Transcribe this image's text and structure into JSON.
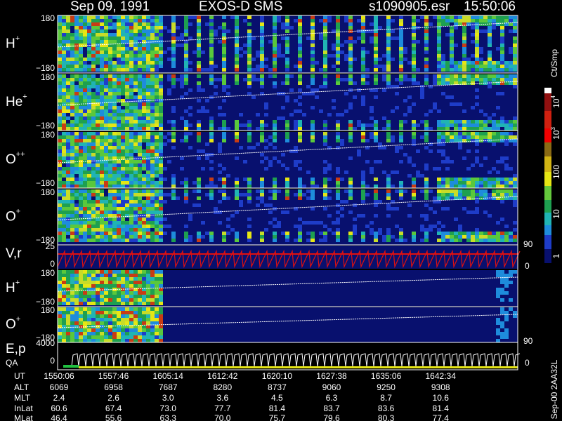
{
  "header": {
    "date": "Sep 09, 1991",
    "instrument": "EXOS-D SMS",
    "file": "s1090905.esr",
    "time": "15:50:06"
  },
  "panels": [
    {
      "label": "H",
      "sup": "+",
      "top": "180",
      "bottom": "−180"
    },
    {
      "label": "He",
      "sup": "+",
      "top": "180",
      "bottom": "−180"
    },
    {
      "label": "O",
      "sup": "++",
      "top": "180",
      "bottom": "−180"
    },
    {
      "label": "O",
      "sup": "+",
      "top": "180",
      "bottom": "−180"
    },
    {
      "label": "H",
      "sup": "+",
      "top": "180",
      "bottom": "−180"
    },
    {
      "label": "O",
      "sup": "+",
      "top": "180",
      "bottom": "−180"
    }
  ],
  "vr": {
    "label": "V,r",
    "top": "25",
    "bottom": "0",
    "right_top": "90",
    "right_bottom": "0"
  },
  "ep": {
    "label": "E,p",
    "label2": "QA",
    "top": "4000",
    "bottom": "0",
    "right_top": "90",
    "right_bottom": "0"
  },
  "colorbar": {
    "unit": "Ct/Smp",
    "labels": [
      {
        "base": "10",
        "exp": "4"
      },
      {
        "base": "10",
        "exp": "3"
      },
      {
        "text": "100"
      },
      {
        "text": "10"
      },
      {
        "text": "1"
      }
    ]
  },
  "footer": {
    "rows": [
      {
        "label": "UT",
        "values": [
          "1550:06",
          "1557:46",
          "1605:14",
          "1612:42",
          "1620:10",
          "1627:38",
          "1635:06",
          "1642:34"
        ]
      },
      {
        "label": "ALT",
        "values": [
          "6069",
          "6958",
          "7687",
          "8280",
          "8737",
          "9060",
          "9250",
          "9308"
        ]
      },
      {
        "label": "MLT",
        "values": [
          "2.4",
          "2.6",
          "3.0",
          "3.6",
          "4.5",
          "6.3",
          "8.7",
          "10.6"
        ]
      },
      {
        "label": "InLat",
        "values": [
          "60.6",
          "67.4",
          "73.0",
          "77.7",
          "81.4",
          "83.7",
          "83.6",
          "81.4"
        ]
      },
      {
        "label": "MLat",
        "values": [
          "46.4",
          "55.6",
          "63.3",
          "70.0",
          "75.7",
          "79.6",
          "80.3",
          "77.4"
        ]
      }
    ]
  },
  "stamp": "Sep-00 2AA32L"
}
